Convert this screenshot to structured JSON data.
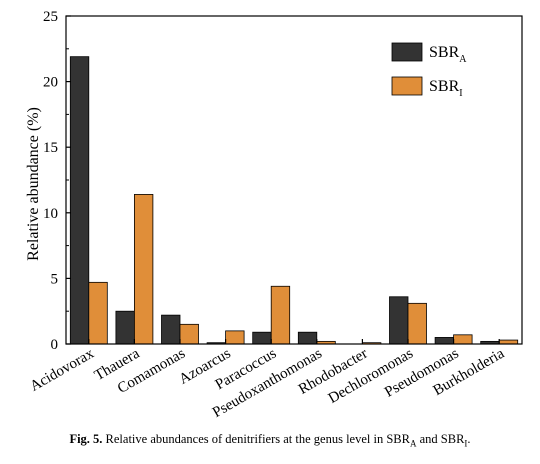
{
  "chart_data": {
    "type": "bar",
    "categories": [
      "Acidovorax",
      "Thauera",
      "Comamonas",
      "Azoarcus",
      "Paracoccus",
      "Pseudoxanthomonas",
      "Rhodobacter",
      "Dechloromonas",
      "Pseudomonas",
      "Burkholderia"
    ],
    "series": [
      {
        "name_main": "SBR",
        "name_sub": "A",
        "color": "#333333",
        "values": [
          21.9,
          2.5,
          2.2,
          0.1,
          0.9,
          0.9,
          0.0,
          3.6,
          0.5,
          0.2
        ]
      },
      {
        "name_main": "SBR",
        "name_sub": "I",
        "color": "#e08e39",
        "values": [
          4.7,
          11.4,
          1.5,
          1.0,
          4.4,
          0.2,
          0.1,
          3.1,
          0.7,
          0.3
        ]
      }
    ],
    "ylabel": "Relative abundance (%)",
    "ylim": [
      0,
      25
    ],
    "yticks": [
      "0",
      "5",
      "10",
      "15",
      "20",
      "25"
    ],
    "grid": false,
    "legend_position": "top-right"
  },
  "caption": {
    "label": "Fig. 5.",
    "text_before": " Relative abundances of denitrifiers at the genus level in SBR",
    "sub_a": "A",
    "text_middle": " and SBR",
    "sub_i": "I",
    "text_end": "."
  }
}
